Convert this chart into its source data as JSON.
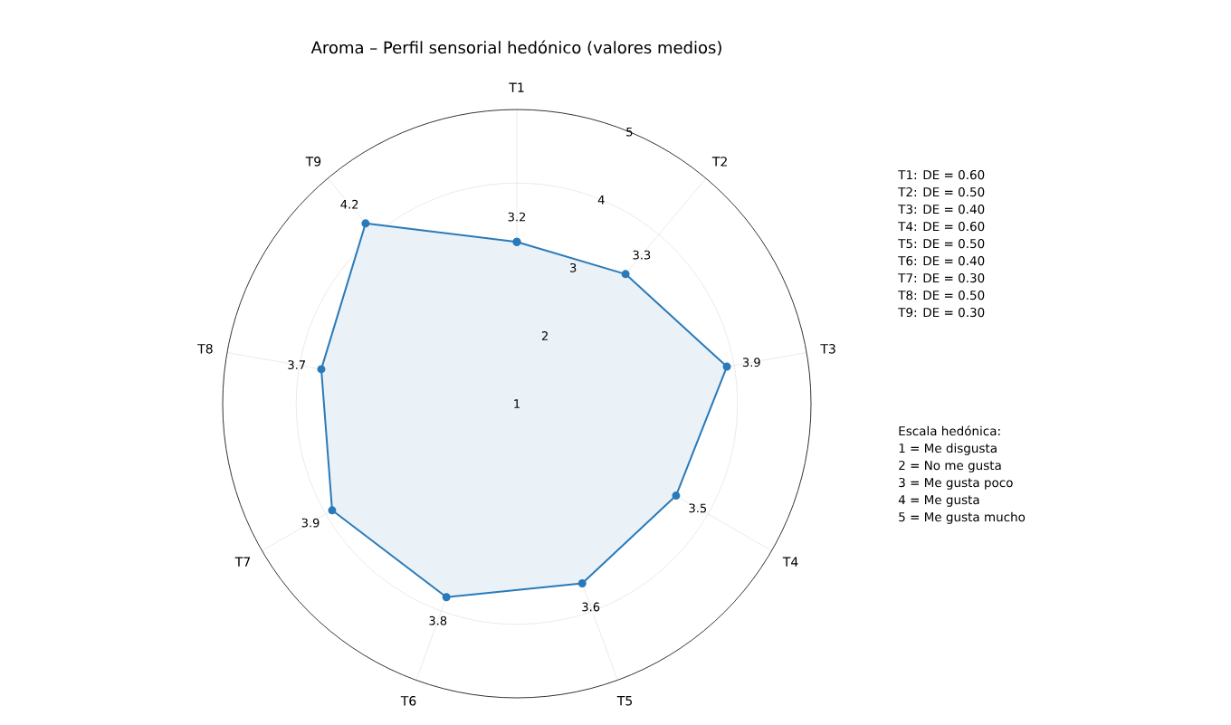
{
  "chart_data": {
    "type": "radar",
    "title": "Aroma – Perfil sensorial hedónico (valores medios)",
    "categories": [
      "T1",
      "T2",
      "T3",
      "T4",
      "T5",
      "T6",
      "T7",
      "T8",
      "T9"
    ],
    "series": [
      {
        "color": "#2a7ab9",
        "values": [
          3.2,
          3.3,
          3.9,
          3.5,
          3.6,
          3.8,
          3.9,
          3.7,
          4.2
        ]
      }
    ],
    "ylim": [
      1,
      5
    ],
    "yticks": [
      1,
      2,
      3,
      4,
      5
    ],
    "grid": true,
    "marker": "circle",
    "data_labels": true,
    "annotations": [
      "T1: DE = 0.60",
      "T2: DE = 0.50",
      "T3: DE = 0.40",
      "T4: DE = 0.60",
      "T5: DE = 0.50",
      "T6: DE = 0.40",
      "T7: DE = 0.30",
      "T8: DE = 0.50",
      "T9: DE = 0.30",
      "Escala hedónica:",
      "1 = Me disgusta",
      "2 = No me gusta",
      "3 = Me gusta poco",
      "4 = Me gusta",
      "5 = Me gusta mucho"
    ]
  }
}
